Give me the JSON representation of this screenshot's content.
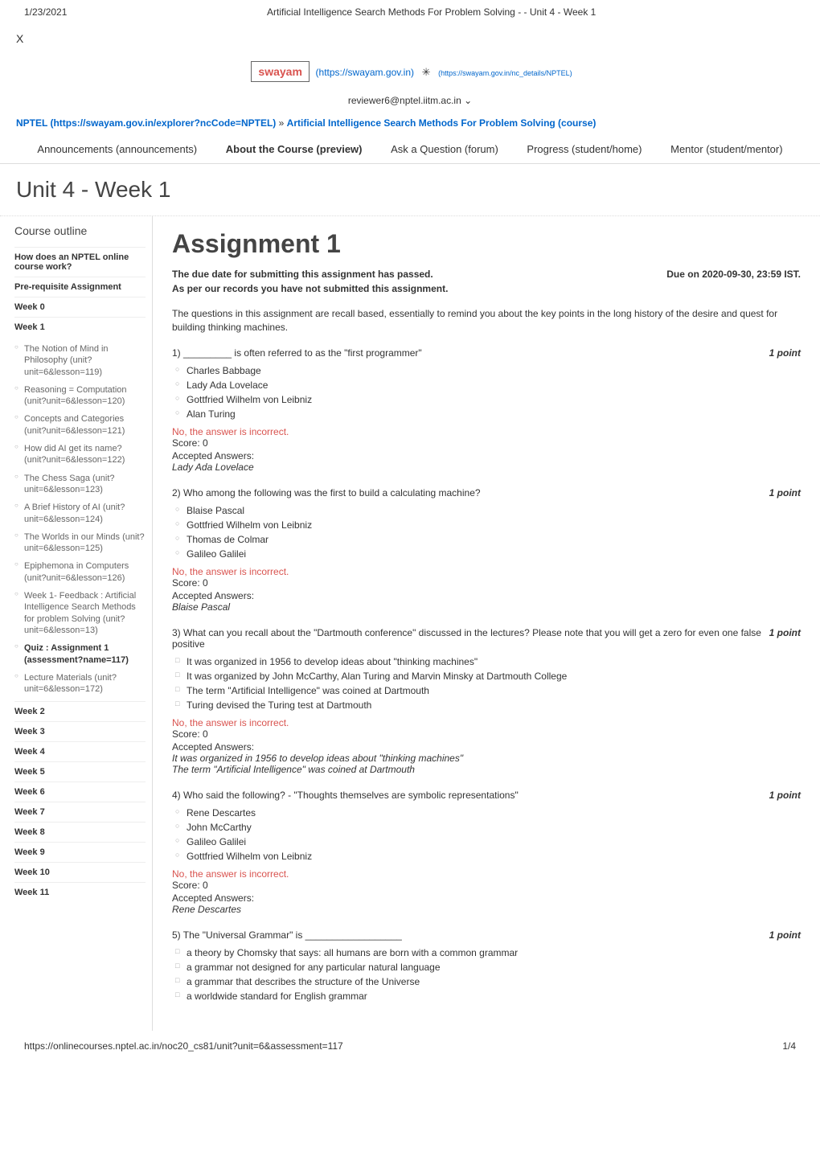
{
  "meta": {
    "date": "1/23/2021",
    "pageTitle": "Artificial Intelligence Search Methods For Problem Solving - - Unit 4 - Week 1",
    "closeX": "X",
    "swayamLogo": "swayam",
    "swayamLink": "(https://swayam.gov.in)",
    "nptelLogoLink": "(https://swayam.gov.in/nc_details/NPTEL)",
    "reviewer": "reviewer6@nptel.iitm.ac.in ⌄",
    "footerUrl": "https://onlinecourses.nptel.ac.in/noc20_cs81/unit?unit=6&assessment=117",
    "footerPage": "1/4"
  },
  "breadcrumb": {
    "nptel": "NPTEL (https://swayam.gov.in/explorer?ncCode=NPTEL)",
    "sep": "»",
    "course": "Artificial Intelligence Search Methods For Problem Solving (course)"
  },
  "tabs": {
    "announcements": "Announcements (announcements)",
    "about": "About the Course (preview)",
    "ask": "Ask a Question (forum)",
    "progress": "Progress (student/home)",
    "mentor": "Mentor (student/mentor)"
  },
  "unitTitle": "Unit 4 - Week 1",
  "sidebar": {
    "title": "Course outline",
    "sections": [
      {
        "label": "How does an NPTEL online course work?",
        "items": []
      },
      {
        "label": "Pre-requisite Assignment",
        "items": []
      },
      {
        "label": "Week 0",
        "items": []
      },
      {
        "label": "Week 1",
        "items": [
          "The Notion of Mind in Philosophy (unit?unit=6&lesson=119)",
          "Reasoning = Computation (unit?unit=6&lesson=120)",
          "Concepts and Categories (unit?unit=6&lesson=121)",
          "How did AI get its name? (unit?unit=6&lesson=122)",
          "The Chess Saga (unit?unit=6&lesson=123)",
          "A Brief History of AI (unit?unit=6&lesson=124)",
          "The Worlds in our Minds (unit?unit=6&lesson=125)",
          "Epiphemona in Computers (unit?unit=6&lesson=126)",
          "Week 1- Feedback : Artificial Intelligence Search Methods for problem Solving (unit?unit=6&lesson=13)",
          "Quiz : Assignment 1 (assessment?name=117)",
          "Lecture Materials (unit?unit=6&lesson=172)"
        ],
        "activeIndex": 9
      },
      {
        "label": "Week 2",
        "items": []
      },
      {
        "label": "Week 3",
        "items": []
      },
      {
        "label": "Week 4",
        "items": []
      },
      {
        "label": "Week 5",
        "items": []
      },
      {
        "label": "Week 6",
        "items": []
      },
      {
        "label": "Week 7",
        "items": []
      },
      {
        "label": "Week 8",
        "items": []
      },
      {
        "label": "Week 9",
        "items": []
      },
      {
        "label": "Week 10",
        "items": []
      },
      {
        "label": "Week 11",
        "items": []
      }
    ]
  },
  "assignment": {
    "title": "Assignment 1",
    "duePassed": "The due date for submitting this assignment has passed.",
    "dueOn": "Due on 2020-09-30, 23:59 IST.",
    "notSubmitted": "As per our records you have not submitted this assignment.",
    "intro": "The questions in this assignment are recall based, essentially to remind you about the key points in the long history of the desire and quest for building thinking machines.",
    "incorrect": "No, the answer is incorrect.",
    "scoreZero": "Score: 0",
    "acceptedLabel": "Accepted Answers:",
    "pointsLabel": "1 point",
    "questions": [
      {
        "num": "1)",
        "text": "_________ is often referred to as the \"first programmer\"",
        "type": "radio",
        "options": [
          "Charles Babbage",
          "Lady Ada Lovelace",
          "Gottfried Wilhelm von Leibniz",
          "Alan Turing"
        ],
        "accepted": [
          "Lady Ada Lovelace"
        ]
      },
      {
        "num": "2)",
        "text": "Who among the following was the first to build a calculating machine?",
        "type": "radio",
        "options": [
          "Blaise Pascal",
          "Gottfried Wilhelm von Leibniz",
          "Thomas de Colmar",
          "Galileo Galilei"
        ],
        "accepted": [
          "Blaise Pascal"
        ]
      },
      {
        "num": "3)",
        "text": "What can you recall about the \"Dartmouth conference\" discussed in the lectures? Please note that you will get a zero for even one false positive",
        "type": "checkbox",
        "options": [
          "It was organized in 1956 to develop ideas about \"thinking machines\"",
          "It was organized by John McCarthy, Alan Turing and Marvin Minsky at Dartmouth College",
          "The term \"Artificial Intelligence\" was coined at Dartmouth",
          "Turing devised the Turing test at Dartmouth"
        ],
        "accepted": [
          "It was organized in 1956 to develop ideas about \"thinking machines\"",
          "The term \"Artificial Intelligence\" was coined at Dartmouth"
        ]
      },
      {
        "num": "4)",
        "text": "Who said the following? - \"Thoughts themselves are symbolic representations\"",
        "type": "radio",
        "options": [
          "Rene Descartes",
          "John McCarthy",
          "Galileo Galilei",
          "Gottfried Wilhelm von Leibniz"
        ],
        "accepted": [
          "Rene Descartes"
        ]
      },
      {
        "num": "5)",
        "text": "The \"Universal Grammar\" is __________________",
        "type": "checkbox",
        "options": [
          "a theory by Chomsky that says: all humans are born with a common grammar",
          "a grammar not designed for any particular natural language",
          "a grammar that describes the structure of the Universe",
          "a worldwide standard for English grammar"
        ],
        "accepted": []
      }
    ]
  }
}
